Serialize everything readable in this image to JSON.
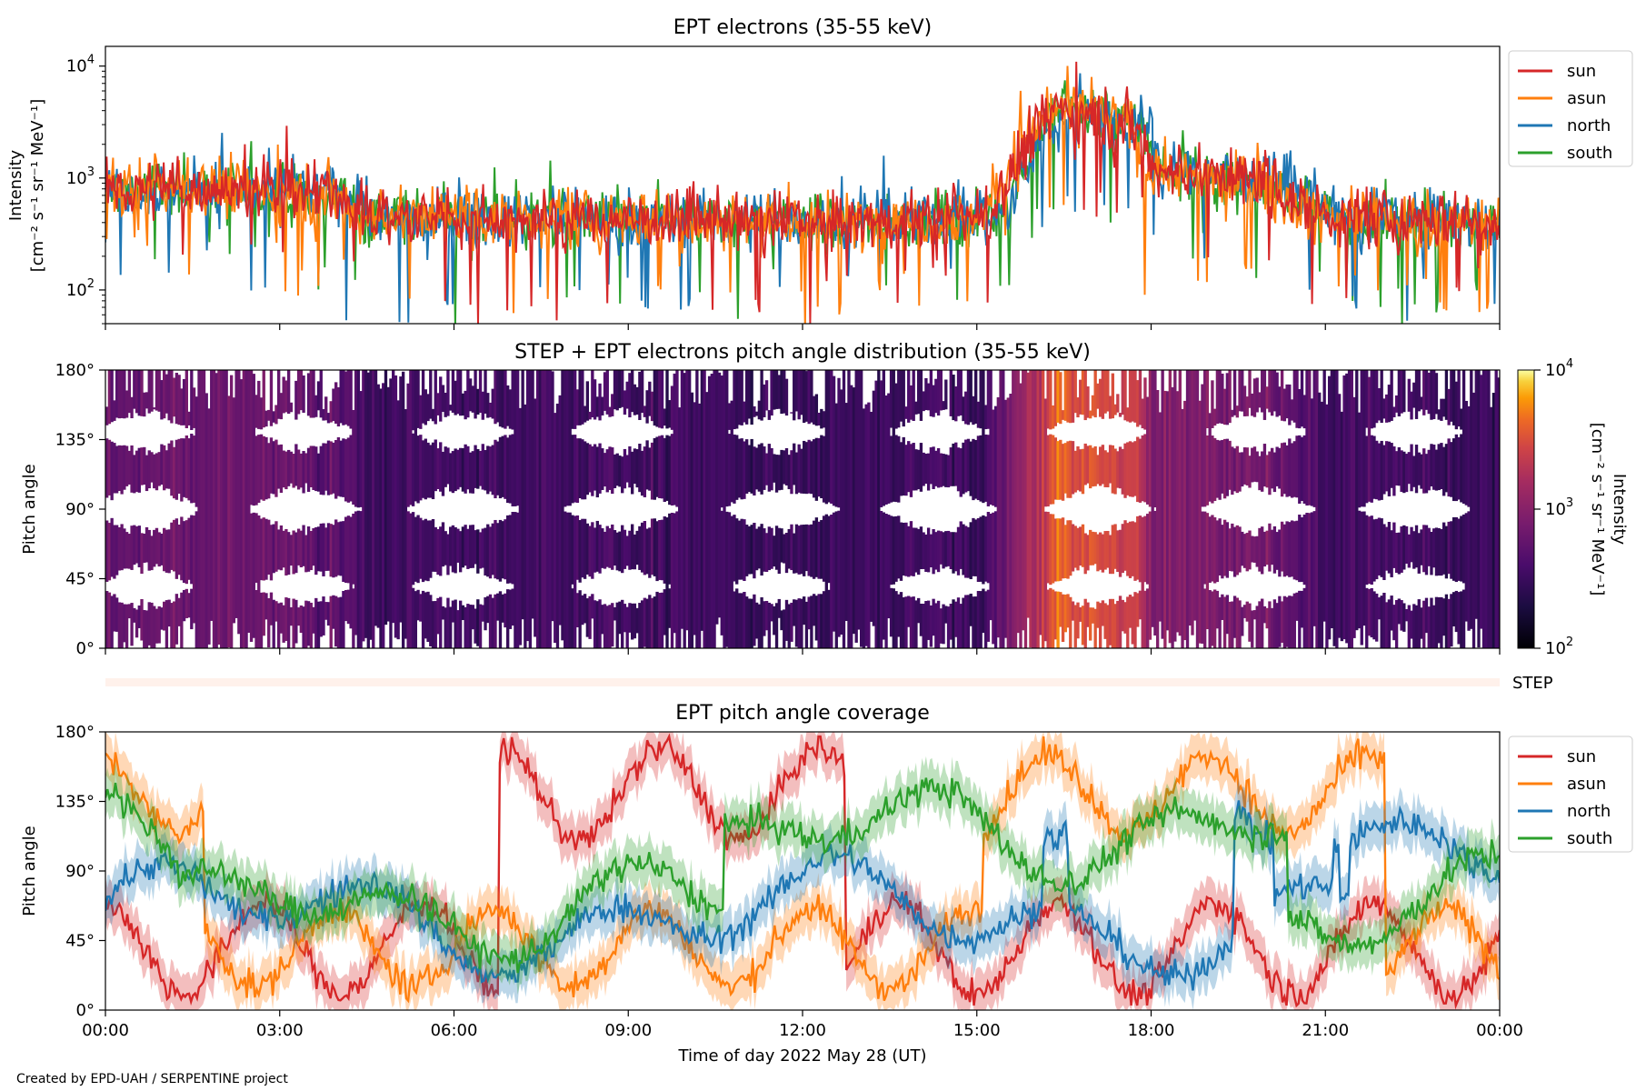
{
  "figure": {
    "credit": "Created by EPD-UAH / SERPENTINE project",
    "xlabel": "Time of day 2022 May 28 (UT)",
    "xticks": [
      "00:00",
      "03:00",
      "06:00",
      "09:00",
      "12:00",
      "15:00",
      "18:00",
      "21:00",
      "00:00"
    ],
    "step_label": "STEP"
  },
  "chart_data": [
    {
      "type": "line",
      "title": "EPT electrons (35-55 keV)",
      "ylabel_line1": "Intensity",
      "ylabel_line2": "[cm⁻² s⁻¹ sr⁻¹ MeV⁻¹]",
      "yscale": "log",
      "ylim": [
        50,
        15000
      ],
      "yticks": [
        {
          "base": "10",
          "exp": "2"
        },
        {
          "base": "10",
          "exp": "3"
        },
        {
          "base": "10",
          "exp": "4"
        }
      ],
      "xlim_hours": [
        0,
        24
      ],
      "legend": "outside-right",
      "series": [
        {
          "name": "sun",
          "color": "#d62728"
        },
        {
          "name": "asun",
          "color": "#ff7f0e"
        },
        {
          "name": "north",
          "color": "#1f77b4"
        },
        {
          "name": "south",
          "color": "#2ca02c"
        }
      ],
      "profile_hours": [
        0,
        2,
        4.2,
        4.3,
        9,
        13,
        15.2,
        16.0,
        16.4,
        17.0,
        17.8,
        18.0,
        20,
        21,
        24
      ],
      "profile_values": [
        800,
        800,
        700,
        450,
        430,
        400,
        450,
        2500,
        4500,
        3800,
        2800,
        1200,
        900,
        450,
        400
      ]
    },
    {
      "type": "heatmap",
      "title": "STEP + EPT electrons pitch angle distribution (35-55 keV)",
      "ylabel": "Pitch angle",
      "yticks": [
        "0°",
        "45°",
        "90°",
        "135°",
        "180°"
      ],
      "ylim": [
        0,
        180
      ],
      "colorbar": {
        "label_line1": "Intensity",
        "label_line2": "[cm⁻² s⁻¹ sr⁻¹ MeV⁻¹]",
        "scale": "log",
        "range": [
          100,
          10000
        ],
        "ticks": [
          {
            "base": "10",
            "exp": "2"
          },
          {
            "base": "10",
            "exp": "3"
          },
          {
            "base": "10",
            "exp": "4"
          }
        ],
        "colormap": "inferno"
      }
    },
    {
      "type": "line",
      "title": "EPT pitch angle coverage",
      "ylabel": "Pitch angle",
      "yticks": [
        "0°",
        "45°",
        "90°",
        "135°",
        "180°"
      ],
      "ylim": [
        0,
        180
      ],
      "legend": "outside-right",
      "series": [
        {
          "name": "sun",
          "color": "#d62728"
        },
        {
          "name": "asun",
          "color": "#ff7f0e"
        },
        {
          "name": "north",
          "color": "#1f77b4"
        },
        {
          "name": "south",
          "color": "#2ca02c"
        }
      ]
    }
  ]
}
